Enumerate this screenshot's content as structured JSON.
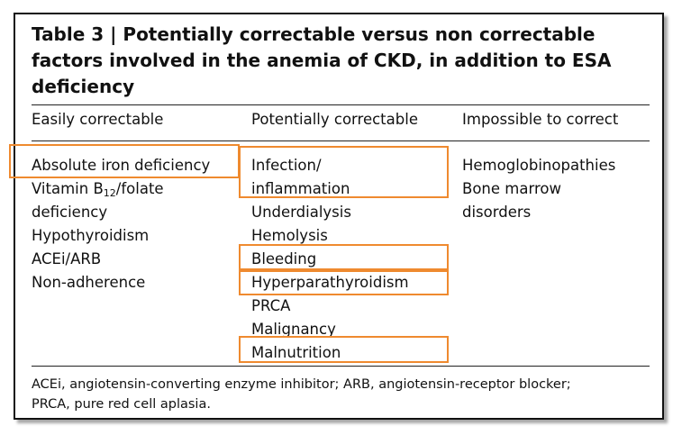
{
  "table": {
    "title": "Table 3 | Potentially correctable versus non correctable factors involved in the anemia of CKD, in addition to ESA deficiency",
    "columns": [
      "Easily correctable",
      "Potentially correctable",
      "Impossible to correct"
    ],
    "easily_correctable": {
      "item0": "Absolute iron deficiency",
      "item1_pre": "Vitamin B",
      "item1_sub": "12",
      "item1_post": "/folate",
      "item2": "deficiency",
      "item3": "Hypothyroidism",
      "item4": "ACEi/ARB",
      "item5": "Non-adherence"
    },
    "potentially_correctable": [
      "Infection/",
      "inflammation",
      "Underdialysis",
      "Hemolysis",
      "Bleeding",
      "Hyperparathyroidism",
      "PRCA",
      "Malignancy",
      "Malnutrition"
    ],
    "impossible_to_correct": [
      "Hemoglobinopathies",
      "Bone marrow",
      "disorders"
    ],
    "footnote": "ACEi, angiotensin-converting enzyme inhibitor; ARB, angiotensin-receptor blocker;\nPRCA, pure red cell aplasia."
  },
  "highlight_color": "#ef8a2f"
}
